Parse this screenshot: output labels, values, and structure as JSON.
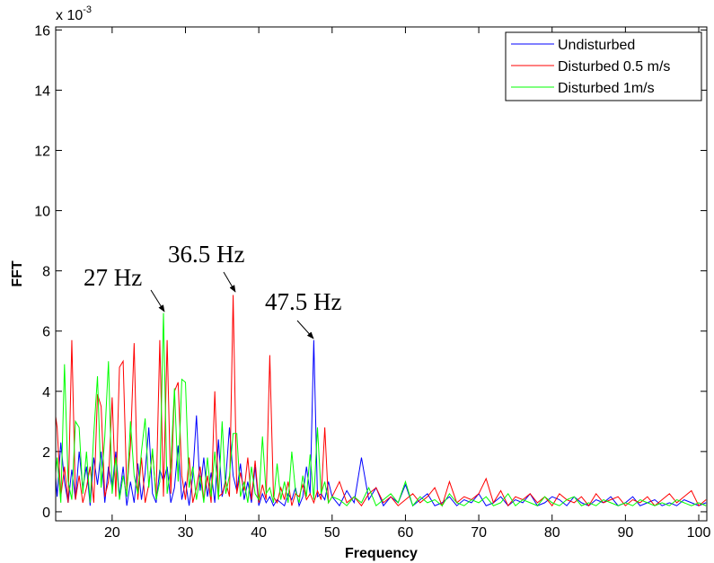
{
  "chart_data": {
    "type": "line",
    "xlabel": "Frequency",
    "ylabel": "FFT",
    "y_multiplier": {
      "base": "x 10",
      "exponent": "-3"
    },
    "x": [
      12,
      12.5,
      13,
      13.5,
      14,
      14.5,
      15,
      15.5,
      16,
      16.5,
      17,
      17.5,
      18,
      18.5,
      19,
      19.5,
      20,
      20.5,
      21,
      21.5,
      22,
      22.5,
      23,
      23.5,
      24,
      24.5,
      25,
      25.5,
      26,
      26.5,
      27,
      27.5,
      28,
      28.5,
      29,
      29.5,
      30,
      30.5,
      31,
      31.5,
      32,
      32.5,
      33,
      33.5,
      34,
      34.5,
      35,
      35.5,
      36,
      36.5,
      37,
      37.5,
      38,
      38.5,
      39,
      39.5,
      40,
      40.5,
      41,
      41.5,
      42,
      42.5,
      43,
      43.5,
      44,
      44.5,
      45,
      45.5,
      46,
      46.5,
      47,
      47.5,
      48,
      48.5,
      49,
      49.5,
      50,
      51,
      52,
      53,
      54,
      55,
      56,
      57,
      58,
      59,
      60,
      61,
      62,
      63,
      64,
      65,
      66,
      67,
      68,
      69,
      70,
      71,
      72,
      73,
      74,
      75,
      76,
      77,
      78,
      79,
      80,
      81,
      82,
      83,
      84,
      85,
      86,
      87,
      88,
      89,
      90,
      91,
      92,
      93,
      94,
      95,
      96,
      97,
      98,
      99,
      100,
      101
    ],
    "series": [
      {
        "name": "Undisturbed",
        "color": "#0000ff",
        "values": [
          2.1,
          0.5,
          2.3,
          1.0,
          0.3,
          1.4,
          0.4,
          2.0,
          0.8,
          1.5,
          0.2,
          1.8,
          0.9,
          2.0,
          0.3,
          1.5,
          0.8,
          2.0,
          0.5,
          1.5,
          0.2,
          1.0,
          0.3,
          1.6,
          0.4,
          1.3,
          2.8,
          0.6,
          0.3,
          1.4,
          1.0,
          1.5,
          0.3,
          0.8,
          2.2,
          0.4,
          1.0,
          0.2,
          1.2,
          3.2,
          0.7,
          1.8,
          0.5,
          1.3,
          0.3,
          2.4,
          0.5,
          1.1,
          2.8,
          1.2,
          0.7,
          1.6,
          0.4,
          1.0,
          0.3,
          1.5,
          0.2,
          0.6,
          0.3,
          0.5,
          0.2,
          0.4,
          0.3,
          0.2,
          0.6,
          0.4,
          0.8,
          0.2,
          0.5,
          1.5,
          0.6,
          5.7,
          0.5,
          0.6,
          0.4,
          1.0,
          0.5,
          0.2,
          0.7,
          0.3,
          1.8,
          0.4,
          0.8,
          0.2,
          0.5,
          0.3,
          0.9,
          0.2,
          0.4,
          0.6,
          0.2,
          0.3,
          0.5,
          0.2,
          0.4,
          0.3,
          0.6,
          0.2,
          0.3,
          0.5,
          0.2,
          0.4,
          0.3,
          0.6,
          0.2,
          0.3,
          0.5,
          0.4,
          0.2,
          0.5,
          0.3,
          0.2,
          0.4,
          0.3,
          0.5,
          0.2,
          0.3,
          0.5,
          0.2,
          0.3,
          0.4,
          0.2,
          0.3,
          0.2,
          0.4,
          0.3,
          0.2,
          0.3
        ]
      },
      {
        "name": "Disturbed 0.5 m/s",
        "color": "#ff0000",
        "values": [
          3.7,
          2.8,
          0.5,
          1.5,
          0.3,
          5.7,
          0.4,
          1.2,
          0.3,
          0.8,
          1.5,
          0.3,
          3.9,
          3.5,
          0.5,
          1.0,
          3.8,
          0.5,
          4.8,
          5.0,
          0.7,
          2.2,
          5.6,
          0.4,
          1.8,
          0.3,
          0.9,
          2.0,
          0.5,
          5.7,
          0.5,
          5.7,
          0.6,
          4.0,
          4.3,
          1.2,
          0.4,
          1.8,
          0.3,
          0.8,
          1.5,
          0.4,
          1.2,
          0.3,
          4.0,
          0.5,
          0.6,
          1.0,
          0.5,
          7.2,
          0.6,
          1.3,
          0.7,
          1.8,
          0.4,
          1.7,
          0.3,
          0.9,
          0.4,
          5.2,
          0.5,
          0.3,
          0.8,
          0.4,
          1.0,
          0.2,
          0.6,
          0.5,
          0.9,
          0.4,
          0.6,
          0.3,
          0.7,
          0.4,
          2.8,
          0.3,
          0.5,
          1.0,
          0.3,
          0.5,
          0.2,
          0.6,
          0.8,
          0.3,
          0.5,
          0.2,
          0.4,
          0.6,
          0.3,
          0.5,
          0.8,
          0.2,
          1.0,
          0.3,
          0.5,
          0.4,
          0.6,
          1.1,
          0.3,
          0.7,
          0.2,
          0.5,
          0.4,
          0.6,
          0.3,
          0.5,
          0.2,
          0.6,
          0.4,
          0.3,
          0.5,
          0.2,
          0.6,
          0.3,
          0.4,
          0.5,
          0.2,
          0.4,
          0.3,
          0.5,
          0.2,
          0.4,
          0.6,
          0.3,
          0.5,
          0.7,
          0.2,
          0.4
        ]
      },
      {
        "name": "Disturbed 1m/s",
        "color": "#00ff00",
        "values": [
          0.5,
          1.8,
          0.3,
          4.9,
          1.0,
          0.4,
          3.0,
          2.8,
          0.6,
          2.0,
          0.3,
          2.6,
          4.5,
          0.8,
          2.5,
          5.0,
          0.6,
          1.8,
          0.4,
          1.2,
          0.5,
          3.0,
          1.2,
          0.6,
          2.0,
          3.1,
          0.8,
          2.1,
          0.4,
          1.0,
          6.6,
          0.6,
          1.5,
          4.1,
          1.0,
          4.4,
          4.3,
          0.8,
          1.5,
          0.4,
          1.2,
          0.3,
          1.8,
          0.5,
          2.0,
          0.4,
          3.0,
          0.6,
          1.2,
          2.6,
          2.6,
          0.5,
          1.0,
          0.3,
          1.5,
          0.6,
          0.4,
          2.5,
          0.6,
          0.8,
          0.3,
          1.6,
          0.4,
          1.0,
          0.3,
          2.0,
          0.7,
          0.3,
          1.2,
          0.5,
          1.9,
          0.4,
          2.8,
          0.6,
          1.0,
          0.3,
          0.5,
          0.4,
          0.2,
          0.5,
          0.3,
          0.8,
          0.2,
          0.4,
          0.6,
          0.3,
          1.0,
          0.2,
          0.5,
          0.3,
          0.4,
          0.2,
          0.6,
          0.3,
          0.2,
          0.4,
          0.3,
          0.5,
          0.2,
          0.3,
          0.6,
          0.2,
          0.4,
          0.3,
          0.2,
          0.5,
          0.3,
          0.2,
          0.4,
          0.5,
          0.2,
          0.3,
          0.2,
          0.4,
          0.3,
          0.2,
          0.3,
          0.2,
          0.4,
          0.3,
          0.2,
          0.3,
          0.2,
          0.4,
          0.3,
          0.2,
          0.3,
          0.2
        ]
      }
    ],
    "annotations": [
      "27 Hz",
      "36.5 Hz",
      "47.5 Hz"
    ],
    "xlim": [
      12.3,
      101.1
    ],
    "ylim": [
      -0.3,
      16.1
    ],
    "xticks": [
      20,
      30,
      40,
      50,
      60,
      70,
      80,
      90,
      100
    ],
    "yticks": [
      0,
      2,
      4,
      6,
      8,
      10,
      12,
      14,
      16
    ],
    "legend": "top-right"
  }
}
